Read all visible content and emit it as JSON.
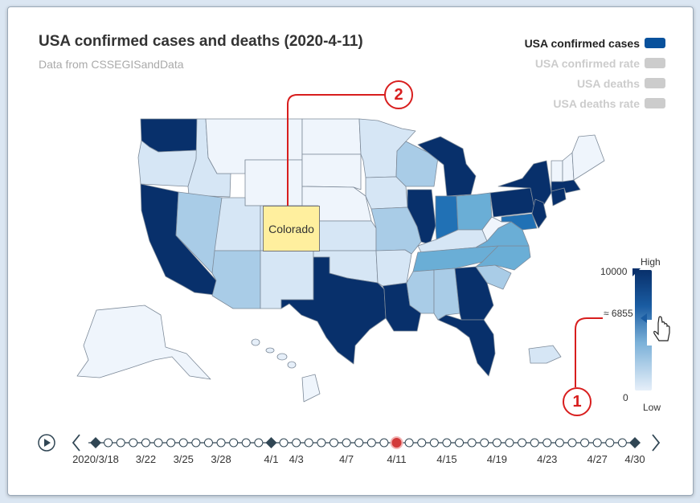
{
  "chart": {
    "title": "USA confirmed cases and deaths (2020-4-11)",
    "subtitle": "Data from CSSEGISandData",
    "legend": [
      {
        "label": "USA confirmed cases",
        "active": true,
        "color": "#08519c"
      },
      {
        "label": "USA confirmed rate",
        "active": false,
        "color": "#cccccc"
      },
      {
        "label": "USA deaths",
        "active": false,
        "color": "#cccccc"
      },
      {
        "label": "USA deaths rate",
        "active": false,
        "color": "#cccccc"
      }
    ],
    "highlighted_state": "Colorado"
  },
  "visual_map": {
    "high_label": "High",
    "low_label": "Low",
    "max_value": "10000",
    "min_value": "0",
    "handle_value": "≈ 6855",
    "colors": {
      "high": "#08306b",
      "low": "#e6eff9"
    }
  },
  "timeline": {
    "play_icon": "play-icon",
    "prev_icon": "chevron-left-icon",
    "next_icon": "chevron-right-icon",
    "current": "4/11",
    "ticks": [
      "2020/3/18",
      "3/22",
      "3/25",
      "3/28",
      "4/1",
      "4/3",
      "4/7",
      "4/11",
      "4/15",
      "4/19",
      "4/23",
      "4/27",
      "4/30"
    ]
  },
  "callouts": [
    "1",
    "2"
  ],
  "states": [
    {
      "name": "Washington",
      "shade": 5
    },
    {
      "name": "Oregon",
      "shade": 1
    },
    {
      "name": "California",
      "shade": 5
    },
    {
      "name": "Idaho",
      "shade": 1
    },
    {
      "name": "Nevada",
      "shade": 2
    },
    {
      "name": "Montana",
      "shade": 0
    },
    {
      "name": "Wyoming",
      "shade": 0
    },
    {
      "name": "Utah",
      "shade": 1
    },
    {
      "name": "Arizona",
      "shade": 2
    },
    {
      "name": "Colorado",
      "shade": 1
    },
    {
      "name": "New Mexico",
      "shade": 1
    },
    {
      "name": "North Dakota",
      "shade": 0
    },
    {
      "name": "South Dakota",
      "shade": 0
    },
    {
      "name": "Nebraska",
      "shade": 0
    },
    {
      "name": "Kansas",
      "shade": 1
    },
    {
      "name": "Oklahoma",
      "shade": 1
    },
    {
      "name": "Texas",
      "shade": 5
    },
    {
      "name": "Minnesota",
      "shade": 1
    },
    {
      "name": "Iowa",
      "shade": 1
    },
    {
      "name": "Missouri",
      "shade": 2
    },
    {
      "name": "Arkansas",
      "shade": 1
    },
    {
      "name": "Louisiana",
      "shade": 5
    },
    {
      "name": "Wisconsin",
      "shade": 2
    },
    {
      "name": "Illinois",
      "shade": 5
    },
    {
      "name": "Michigan",
      "shade": 5
    },
    {
      "name": "Indiana",
      "shade": 4
    },
    {
      "name": "Ohio",
      "shade": 3
    },
    {
      "name": "Kentucky",
      "shade": 1
    },
    {
      "name": "Tennessee",
      "shade": 3
    },
    {
      "name": "Mississippi",
      "shade": 2
    },
    {
      "name": "Alabama",
      "shade": 2
    },
    {
      "name": "Georgia",
      "shade": 5
    },
    {
      "name": "Florida",
      "shade": 5
    },
    {
      "name": "South Carolina",
      "shade": 2
    },
    {
      "name": "North Carolina",
      "shade": 3
    },
    {
      "name": "Virginia",
      "shade": 3
    },
    {
      "name": "West Virginia",
      "shade": 0
    },
    {
      "name": "Pennsylvania",
      "shade": 5
    },
    {
      "name": "New York",
      "shade": 5
    },
    {
      "name": "New Jersey",
      "shade": 5
    },
    {
      "name": "Maryland",
      "shade": 4
    },
    {
      "name": "Vermont",
      "shade": 0
    },
    {
      "name": "New Hampshire",
      "shade": 0
    },
    {
      "name": "Maine",
      "shade": 0
    },
    {
      "name": "Massachusetts",
      "shade": 5
    },
    {
      "name": "Connecticut",
      "shade": 5
    },
    {
      "name": "Alaska",
      "shade": 0
    },
    {
      "name": "Hawaii",
      "shade": 0
    },
    {
      "name": "Puerto Rico",
      "shade": 1
    }
  ]
}
